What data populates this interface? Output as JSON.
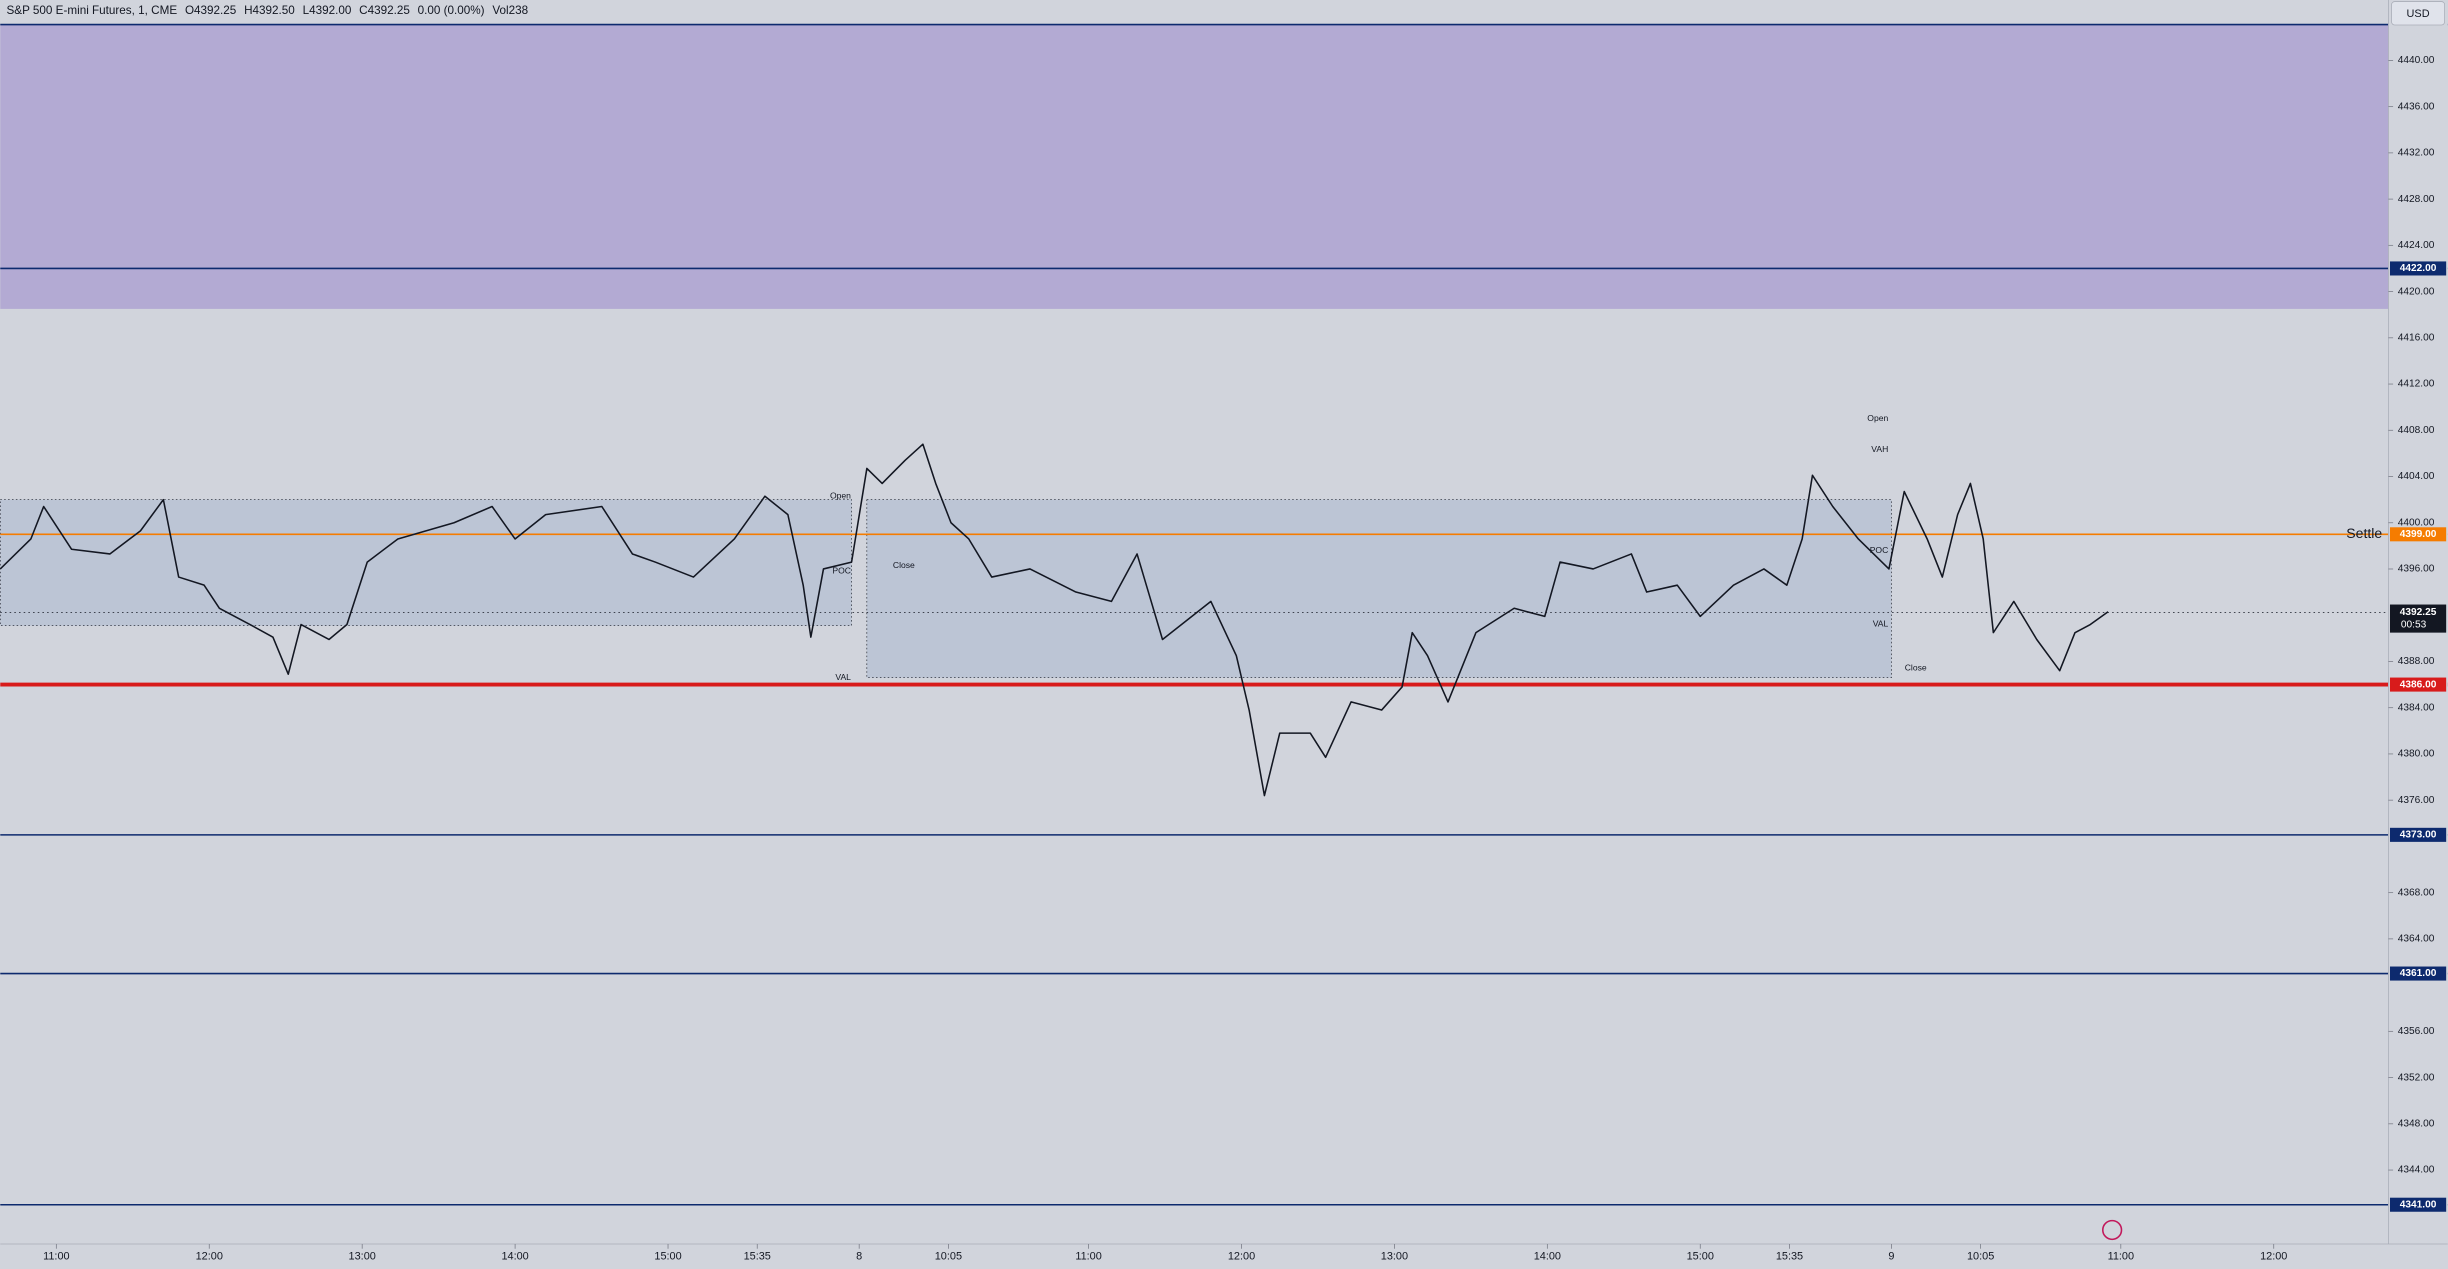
{
  "header": {
    "symbol": "S&P 500 E-mini Futures, 1, CME",
    "open": "O4392.25",
    "high": "H4392.50",
    "low": "L4392.00",
    "close": "C4392.25",
    "change": "0.00 (0.00%)",
    "volume": "Vol238"
  },
  "currency": "USD",
  "chart_data": {
    "type": "line",
    "color": "#131722",
    "x": [
      -22,
      -10,
      -5,
      6,
      21,
      33,
      42,
      48,
      58,
      64,
      76,
      85,
      91,
      96,
      107,
      114,
      122,
      134,
      156,
      171,
      180,
      192,
      214,
      226,
      235,
      250,
      266,
      278,
      287,
      293,
      296,
      301,
      312,
      318,
      324,
      333,
      340,
      345,
      351,
      358,
      367,
      382,
      400,
      414,
      424,
      434,
      453,
      463,
      468,
      474,
      480,
      492,
      498,
      508,
      520,
      528,
      532,
      538,
      546,
      557,
      572,
      584,
      590,
      603,
      618,
      624,
      636,
      645,
      658,
      670,
      679,
      685,
      689,
      697,
      707,
      719,
      725,
      734,
      740,
      746,
      751,
      756,
      760,
      768,
      777,
      786,
      792,
      798,
      805
    ],
    "values": [
      4396,
      4398.6,
      4401.4,
      4397.7,
      4397.3,
      4399.3,
      4402,
      4395.3,
      4394.6,
      4392.6,
      4391.2,
      4390.1,
      4386.9,
      4391.2,
      4389.9,
      4391.2,
      4396.6,
      4398.6,
      4400,
      4401.4,
      4398.6,
      4400.7,
      4401.4,
      4397.3,
      4396.6,
      4395.3,
      4398.6,
      4402.3,
      4400.7,
      4394.6,
      4390.1,
      4396,
      4396.6,
      4404.7,
      4403.4,
      4405.4,
      4406.8,
      4403.4,
      4400,
      4398.6,
      4395.3,
      4396,
      4394,
      4393.2,
      4397.3,
      4389.9,
      4393.2,
      4388.5,
      4383.8,
      4376.4,
      4381.8,
      4381.8,
      4379.7,
      4384.5,
      4383.8,
      4385.8,
      4390.5,
      4388.5,
      4384.5,
      4390.5,
      4392.6,
      4391.9,
      4396.6,
      4396,
      4397.3,
      4394,
      4394.6,
      4391.9,
      4394.6,
      4396,
      4394.6,
      4398.6,
      4404.1,
      4401.4,
      4398.6,
      4396,
      4402.7,
      4398.6,
      4395.3,
      4400.7,
      4403.4,
      4398.6,
      4390.5,
      4393.2,
      4389.9,
      4387.2,
      4390.5,
      4391.2,
      4392.3
    ],
    "xlim": [
      -22,
      915
    ],
    "ylim": [
      4337.6,
      4443.2
    ],
    "xticks": [
      {
        "value": 0,
        "label": "11:00"
      },
      {
        "value": 60,
        "label": "12:00"
      },
      {
        "value": 120,
        "label": "13:00"
      },
      {
        "value": 180,
        "label": "14:00"
      },
      {
        "value": 240,
        "label": "15:00"
      },
      {
        "value": 275,
        "label": "15:35"
      },
      {
        "value": 315,
        "label": "8"
      },
      {
        "value": 350,
        "label": "10:05"
      },
      {
        "value": 405,
        "label": "11:00"
      },
      {
        "value": 465,
        "label": "12:00"
      },
      {
        "value": 525,
        "label": "13:00"
      },
      {
        "value": 585,
        "label": "14:00"
      },
      {
        "value": 645,
        "label": "15:00"
      },
      {
        "value": 680,
        "label": "15:35"
      },
      {
        "value": 720,
        "label": "9"
      },
      {
        "value": 755,
        "label": "10:05"
      },
      {
        "value": 810,
        "label": "11:00"
      },
      {
        "value": 870,
        "label": "12:00"
      }
    ],
    "yticks": [
      {
        "value": 4440,
        "label": "4440.00"
      },
      {
        "value": 4436,
        "label": "4436.00"
      },
      {
        "value": 4432,
        "label": "4432.00"
      },
      {
        "value": 4428,
        "label": "4428.00"
      },
      {
        "value": 4424,
        "label": "4424.00"
      },
      {
        "value": 4420,
        "label": "4420.00"
      },
      {
        "value": 4416,
        "label": "4416.00"
      },
      {
        "value": 4412,
        "label": "4412.00"
      },
      {
        "value": 4408,
        "label": "4408.00"
      },
      {
        "value": 4404,
        "label": "4404.00"
      },
      {
        "value": 4400,
        "label": "4400.00"
      },
      {
        "value": 4396,
        "label": "4396.00"
      },
      {
        "value": 4388,
        "label": "4388.00"
      },
      {
        "value": 4384,
        "label": "4384.00"
      },
      {
        "value": 4380,
        "label": "4380.00"
      },
      {
        "value": 4376,
        "label": "4376.00"
      },
      {
        "value": 4368,
        "label": "4368.00"
      },
      {
        "value": 4364,
        "label": "4364.00"
      },
      {
        "value": 4356,
        "label": "4356.00"
      },
      {
        "value": 4352,
        "label": "4352.00"
      },
      {
        "value": 4348,
        "label": "4348.00"
      },
      {
        "value": 4344,
        "label": "4344.00"
      }
    ],
    "zone": [
      4418.5,
      4443.1
    ],
    "zone_color": "#b3aad3",
    "value_areas": [
      {
        "x": [
          -22,
          312
        ],
        "y": [
          4391.1,
          4402
        ]
      },
      {
        "x": [
          318,
          720
        ],
        "y": [
          4386.6,
          4402
        ]
      }
    ],
    "levels": [
      {
        "value": 4422,
        "value_label": "4422.00",
        "color": "#0d2a6e",
        "width": 1
      },
      {
        "value": 4399,
        "value_label": "4399.00",
        "color": "#f57c00",
        "width": 1,
        "name": "Settle"
      },
      {
        "value": 4386,
        "value_label": "4386.00",
        "color": "#d81b1b",
        "width": 2.5
      },
      {
        "value": 4373,
        "value_label": "4373.00",
        "color": "#0d2a6e",
        "width": 1
      },
      {
        "value": 4361,
        "value_label": "4361.00",
        "color": "#0d2a6e",
        "width": 1
      },
      {
        "value": 4341,
        "value_label": "4341.00",
        "color": "#0d2a6e",
        "width": 1
      }
    ],
    "last_price": {
      "value": 4392.25,
      "value_label": "4392.25",
      "countdown": "00:53"
    },
    "annotations": [
      {
        "text": "Open",
        "x": 313,
        "price": 4402.3,
        "align": "right"
      },
      {
        "text": "POC",
        "x": 313,
        "price": 4395.8,
        "align": "right"
      },
      {
        "text": "Close",
        "x": 327,
        "price": 4396.3,
        "align": "left"
      },
      {
        "text": "VAL",
        "x": 313,
        "price": 4386.6,
        "align": "right"
      },
      {
        "text": "Open",
        "x": 720,
        "price": 4409,
        "align": "right"
      },
      {
        "text": "VAH",
        "x": 720,
        "price": 4406.3,
        "align": "right"
      },
      {
        "text": "POC",
        "x": 720,
        "price": 4397.6,
        "align": "right"
      },
      {
        "text": "VAL",
        "x": 720,
        "price": 4391.2,
        "align": "right"
      },
      {
        "text": "Close",
        "x": 724,
        "price": 4387.4,
        "align": "left"
      }
    ]
  }
}
